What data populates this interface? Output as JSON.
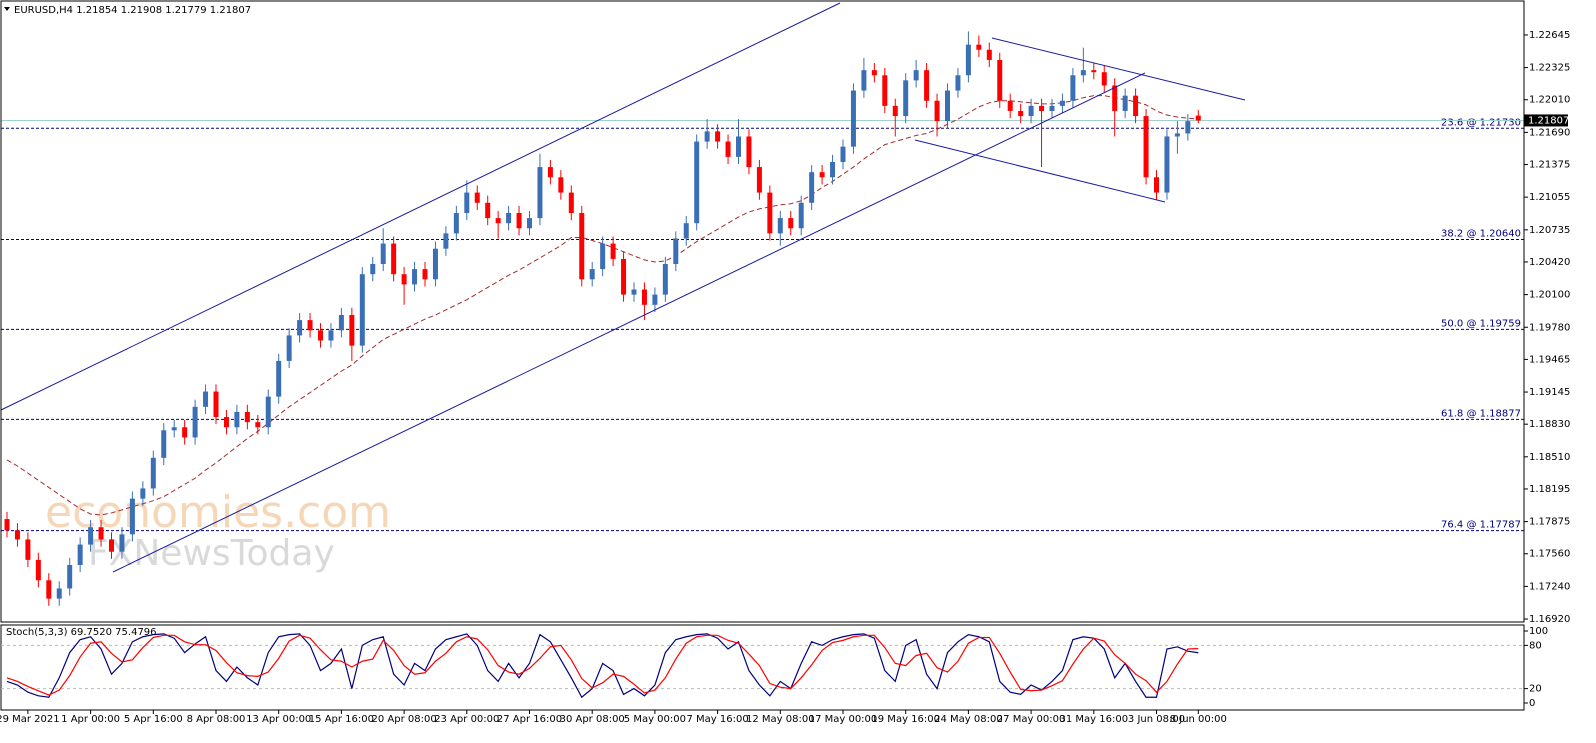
{
  "chart_data": [
    {
      "type": "candlestick",
      "title": "EURUSD,H4  1.21854 1.21908 1.21779 1.21807",
      "categories": [
        null,
        null,
        "29 Mar 2021",
        null,
        null,
        null,
        null,
        null,
        "1 Apr 00:00",
        null,
        null,
        null,
        null,
        null,
        "5 Apr 16:00",
        null,
        null,
        null,
        null,
        null,
        "8 Apr 08:00",
        null,
        null,
        null,
        null,
        null,
        "13 Apr 00:00",
        null,
        null,
        null,
        null,
        null,
        "15 Apr 16:00",
        null,
        null,
        null,
        null,
        null,
        "20 Apr 08:00",
        null,
        null,
        null,
        null,
        null,
        "23 Apr 00:00",
        null,
        null,
        null,
        null,
        null,
        "27 Apr 16:00",
        null,
        null,
        null,
        null,
        null,
        "30 Apr 08:00",
        null,
        null,
        null,
        null,
        null,
        "5 May 00:00",
        null,
        null,
        null,
        null,
        null,
        "7 May 16:00",
        null,
        null,
        null,
        null,
        null,
        "12 May 08:00",
        null,
        null,
        null,
        null,
        null,
        "17 May 00:00",
        null,
        null,
        null,
        null,
        null,
        "19 May 16:00",
        null,
        null,
        null,
        null,
        null,
        "24 May 08:00",
        null,
        null,
        null,
        null,
        null,
        "27 May 00:00",
        null,
        null,
        null,
        null,
        null,
        "31 May 16:00",
        null,
        null,
        null,
        null,
        null,
        "3 Jun 08:00",
        null,
        null,
        null,
        "8 Jun 00:00"
      ],
      "open": [
        1.179,
        1.1779,
        1.177,
        1.175,
        1.173,
        1.1712,
        1.1722,
        1.1745,
        1.1765,
        1.1782,
        1.177,
        1.1758,
        1.1775,
        1.181,
        1.182,
        1.185,
        1.1877,
        1.188,
        1.187,
        1.19,
        1.1915,
        1.189,
        1.188,
        1.1895,
        1.1885,
        1.188,
        1.191,
        1.1945,
        1.197,
        1.1985,
        1.1975,
        1.1965,
        1.1975,
        1.199,
        1.196,
        1.203,
        1.204,
        1.206,
        1.203,
        1.202,
        1.2035,
        1.2025,
        1.2055,
        1.207,
        1.209,
        1.211,
        1.21,
        1.2085,
        1.208,
        1.209,
        1.2075,
        1.2085,
        1.2135,
        1.2125,
        1.211,
        1.209,
        1.2025,
        1.2035,
        1.206,
        1.2045,
        1.201,
        1.2015,
        1.2,
        1.201,
        1.204,
        1.2065,
        1.208,
        1.216,
        1.217,
        1.216,
        1.2145,
        1.2165,
        1.2135,
        1.211,
        1.207,
        1.2085,
        1.2075,
        1.21,
        1.213,
        1.2125,
        1.214,
        1.2155,
        1.221,
        1.223,
        1.2225,
        1.2195,
        1.2185,
        1.222,
        1.223,
        1.22,
        1.218,
        1.221,
        1.2225,
        1.2255,
        1.225,
        1.224,
        1.22,
        1.219,
        1.2185,
        1.2195,
        1.219,
        1.2195,
        1.22,
        1.2225,
        1.223,
        1.2228,
        1.2215,
        1.219,
        1.2205,
        1.2185,
        1.2125,
        1.211,
        1.2165,
        1.2168,
        1.21854
      ],
      "high": [
        1.1797,
        1.1786,
        1.1777,
        1.1757,
        1.1737,
        1.1729,
        1.1752,
        1.1772,
        1.1789,
        1.1789,
        1.1777,
        1.1782,
        1.1817,
        1.1827,
        1.1857,
        1.1884,
        1.1887,
        1.1887,
        1.1907,
        1.1922,
        1.1922,
        1.1897,
        1.1902,
        1.1902,
        1.1892,
        1.1917,
        1.1952,
        1.1977,
        1.1992,
        1.1992,
        1.1982,
        1.1982,
        1.1997,
        1.1997,
        1.2037,
        1.2047,
        1.2075,
        1.2067,
        1.2037,
        1.2042,
        1.2042,
        1.2062,
        1.2077,
        1.2097,
        1.2122,
        1.2117,
        1.2107,
        1.2092,
        1.2097,
        1.2097,
        1.2092,
        1.2148,
        1.2142,
        1.2132,
        1.2117,
        1.2097,
        1.2042,
        1.2067,
        1.2067,
        1.2052,
        1.2022,
        1.2022,
        1.2017,
        1.2047,
        1.2072,
        1.2087,
        1.2167,
        1.2182,
        1.2177,
        1.2167,
        1.2182,
        1.2172,
        1.2142,
        1.2117,
        1.2092,
        1.2092,
        1.2107,
        1.2137,
        1.2137,
        1.2147,
        1.2162,
        1.2217,
        1.2242,
        1.2237,
        1.2232,
        1.2202,
        1.2227,
        1.224,
        1.2237,
        1.2207,
        1.2217,
        1.2232,
        1.2268,
        1.2264,
        1.2257,
        1.2247,
        1.2207,
        1.2197,
        1.2202,
        1.2202,
        1.2202,
        1.2207,
        1.2232,
        1.2252,
        1.2237,
        1.2235,
        1.2222,
        1.2212,
        1.2212,
        1.2192,
        1.2132,
        1.2172,
        1.218,
        1.2187,
        1.21908
      ],
      "low": [
        1.1772,
        1.1763,
        1.1743,
        1.1723,
        1.1705,
        1.1705,
        1.1715,
        1.1738,
        1.1758,
        1.1763,
        1.1751,
        1.1751,
        1.1768,
        1.1803,
        1.1813,
        1.1843,
        1.187,
        1.1863,
        1.1863,
        1.1893,
        1.1883,
        1.1873,
        1.1873,
        1.1878,
        1.1873,
        1.1873,
        1.1903,
        1.1938,
        1.1963,
        1.1968,
        1.1958,
        1.1958,
        1.1968,
        1.1945,
        1.1953,
        1.2023,
        1.2033,
        1.2023,
        1.2,
        1.2013,
        1.2018,
        1.2018,
        1.2048,
        1.2063,
        1.2083,
        1.2093,
        1.2078,
        1.2065,
        1.2073,
        1.2068,
        1.2068,
        1.2078,
        1.2118,
        1.2103,
        1.2083,
        1.2018,
        1.2018,
        1.2028,
        1.2038,
        1.2003,
        1.2003,
        1.1985,
        1.1993,
        1.2003,
        1.2033,
        1.2058,
        1.2073,
        1.2153,
        1.2153,
        1.2138,
        1.2138,
        1.2128,
        1.2103,
        1.2063,
        1.2058,
        1.2068,
        1.2068,
        1.2093,
        1.2118,
        1.2118,
        1.2133,
        1.2148,
        1.2203,
        1.2218,
        1.2188,
        1.2165,
        1.2178,
        1.2213,
        1.2193,
        1.2165,
        1.2173,
        1.2203,
        1.2218,
        1.2243,
        1.2233,
        1.2193,
        1.2183,
        1.2178,
        1.2178,
        1.2135,
        1.2183,
        1.2188,
        1.2193,
        1.2218,
        1.2221,
        1.2208,
        1.2165,
        1.2183,
        1.2178,
        1.2118,
        1.2103,
        1.2103,
        1.2148,
        1.2161,
        1.21779
      ],
      "close": [
        1.1779,
        1.177,
        1.175,
        1.173,
        1.1712,
        1.1722,
        1.1745,
        1.1765,
        1.1782,
        1.177,
        1.1758,
        1.1775,
        1.181,
        1.182,
        1.185,
        1.1877,
        1.188,
        1.187,
        1.19,
        1.1915,
        1.189,
        1.188,
        1.1895,
        1.1885,
        1.188,
        1.191,
        1.1945,
        1.197,
        1.1985,
        1.1975,
        1.1965,
        1.1975,
        1.199,
        1.196,
        1.203,
        1.204,
        1.206,
        1.203,
        1.202,
        1.2035,
        1.2025,
        1.2055,
        1.207,
        1.209,
        1.211,
        1.21,
        1.2085,
        1.208,
        1.209,
        1.2075,
        1.2085,
        1.2135,
        1.2125,
        1.211,
        1.209,
        1.2025,
        1.2035,
        1.206,
        1.2045,
        1.201,
        1.2015,
        1.2,
        1.201,
        1.204,
        1.2065,
        1.208,
        1.216,
        1.217,
        1.216,
        1.2145,
        1.2165,
        1.2135,
        1.211,
        1.207,
        1.2085,
        1.2075,
        1.21,
        1.213,
        1.2125,
        1.214,
        1.2155,
        1.221,
        1.223,
        1.2225,
        1.2195,
        1.2185,
        1.222,
        1.223,
        1.22,
        1.218,
        1.221,
        1.2225,
        1.2255,
        1.225,
        1.224,
        1.22,
        1.219,
        1.2185,
        1.2195,
        1.219,
        1.2195,
        1.22,
        1.2225,
        1.223,
        1.2228,
        1.2215,
        1.219,
        1.2205,
        1.2185,
        1.2125,
        1.211,
        1.2165,
        1.2168,
        1.218,
        1.21807
      ],
      "up_color": "#3a6fb5",
      "down_color": "#ff0000",
      "moving_average": {
        "color": "#a52a2a",
        "values": [
          1.1848,
          1.1842,
          1.1835,
          1.1828,
          1.1821,
          1.1814,
          1.1807,
          1.18,
          1.1795,
          1.1794,
          1.1796,
          1.1799,
          1.1802,
          1.1805,
          1.1808,
          1.1812,
          1.1818,
          1.1824,
          1.183,
          1.1838,
          1.1845,
          1.1853,
          1.1861,
          1.1869,
          1.1876,
          1.1884,
          1.1892,
          1.19,
          1.1907,
          1.1914,
          1.1921,
          1.1928,
          1.1935,
          1.1941,
          1.195,
          1.1958,
          1.1966,
          1.1971,
          1.1976,
          1.1981,
          1.1986,
          1.199,
          1.1995,
          1.2,
          1.2005,
          1.2011,
          1.2017,
          1.2023,
          1.2029,
          1.2034,
          1.204,
          1.2046,
          1.2052,
          1.2058,
          1.2066,
          1.2066,
          1.2063,
          1.206,
          1.2056,
          1.2052,
          1.2048,
          1.2044,
          1.2042,
          1.2043,
          1.2048,
          1.2055,
          1.2062,
          1.2068,
          1.2074,
          1.208,
          1.2086,
          1.2091,
          1.2094,
          1.2096,
          1.2098,
          1.2099,
          1.2102,
          1.2108,
          1.2115,
          1.2121,
          1.2128,
          1.2135,
          1.2143,
          1.215,
          1.2157,
          1.216,
          1.2163,
          1.2166,
          1.2168,
          1.2172,
          1.2177,
          1.2182,
          1.2188,
          1.2194,
          1.2198,
          1.22,
          1.22,
          1.2199,
          1.2198,
          1.2197,
          1.2197,
          1.2198,
          1.22,
          1.2203,
          1.2205,
          1.2205,
          1.2203,
          1.2201,
          1.2199,
          1.2196,
          1.219,
          1.2186,
          1.2184,
          1.2183,
          1.2182
        ]
      },
      "ylim": [
        1.16891,
        1.22968
      ],
      "yticks": [
        1.22645,
        1.22325,
        {
          "value": 1.2201,
          "label": "1.22010"
        },
        {
          "value": 1.2169,
          "label": "1.21690"
        },
        1.21375,
        1.21055,
        1.20735,
        {
          "value": 1.2042,
          "label": "1.20420"
        },
        {
          "value": 1.201,
          "label": "1.20100"
        },
        {
          "value": 1.1978,
          "label": "1.19780"
        },
        1.19465,
        1.19145,
        {
          "value": 1.1883,
          "label": "1.18830"
        },
        {
          "value": 1.1851,
          "label": "1.18510"
        },
        1.18195,
        1.17875,
        {
          "value": 1.1756,
          "label": "1.17560"
        },
        {
          "value": 1.1724,
          "label": "1.17240"
        },
        {
          "value": 1.1692,
          "label": "1.16920"
        }
      ],
      "levels": [
        {
          "value": 1.2173,
          "label": "23.6 @ 1.21730"
        },
        {
          "value": 1.2064,
          "label": "38.2 @ 1.20640"
        },
        {
          "value": 1.19759,
          "label": "50.0 @ 1.19759"
        },
        {
          "value": 1.18877,
          "label": "61.8 @ 1.18877"
        },
        {
          "value": 1.17787,
          "label": "76.4 @ 1.17787"
        }
      ],
      "level_color": "#000080",
      "last_price": 1.21807,
      "watermarks": [
        "economies.com",
        "FXNewsToday"
      ]
    },
    {
      "type": "line",
      "title": "Stoch(5,3,3) 69.7520 75.4796",
      "series": [
        {
          "color": "#000080",
          "values": [
            30,
            25,
            15,
            10,
            8,
            35,
            70,
            88,
            92,
            75,
            40,
            55,
            85,
            92,
            95,
            96,
            90,
            70,
            82,
            92,
            45,
            30,
            50,
            35,
            25,
            70,
            92,
            95,
            96,
            80,
            45,
            55,
            75,
            20,
            80,
            88,
            92,
            40,
            25,
            55,
            45,
            75,
            88,
            92,
            96,
            80,
            45,
            30,
            55,
            35,
            55,
            95,
            85,
            60,
            35,
            8,
            20,
            55,
            45,
            12,
            20,
            10,
            25,
            70,
            88,
            92,
            95,
            96,
            90,
            75,
            85,
            45,
            25,
            10,
            30,
            20,
            55,
            85,
            80,
            88,
            92,
            95,
            96,
            90,
            45,
            30,
            80,
            88,
            40,
            20,
            70,
            85,
            95,
            92,
            85,
            30,
            15,
            12,
            25,
            18,
            30,
            45,
            88,
            92,
            90,
            75,
            35,
            55,
            30,
            8,
            8,
            75,
            78,
            72,
            69.752
          ]
        },
        {
          "color": "#ff0000",
          "values": [
            35,
            30,
            23,
            17,
            11,
            18,
            38,
            64,
            83,
            85,
            69,
            57,
            60,
            77,
            91,
            94,
            94,
            85,
            81,
            81,
            73,
            56,
            42,
            38,
            37,
            43,
            62,
            86,
            94,
            90,
            74,
            60,
            58,
            50,
            58,
            61,
            87,
            73,
            52,
            40,
            42,
            58,
            69,
            85,
            92,
            89,
            74,
            52,
            43,
            40,
            48,
            62,
            78,
            80,
            60,
            34,
            21,
            28,
            40,
            37,
            26,
            14,
            18,
            35,
            61,
            83,
            92,
            94,
            94,
            87,
            83,
            68,
            52,
            27,
            22,
            20,
            35,
            53,
            73,
            84,
            87,
            92,
            94,
            94,
            77,
            55,
            52,
            66,
            69,
            49,
            43,
            58,
            83,
            91,
            91,
            69,
            43,
            19,
            17,
            18,
            24,
            31,
            54,
            75,
            90,
            86,
            67,
            55,
            40,
            31,
            15,
            30,
            54,
            75,
            75.4796
          ]
        }
      ],
      "ylim": [
        0,
        100
      ],
      "yticks": [
        0,
        20,
        80,
        100
      ],
      "levels": [
        20,
        80
      ]
    }
  ]
}
